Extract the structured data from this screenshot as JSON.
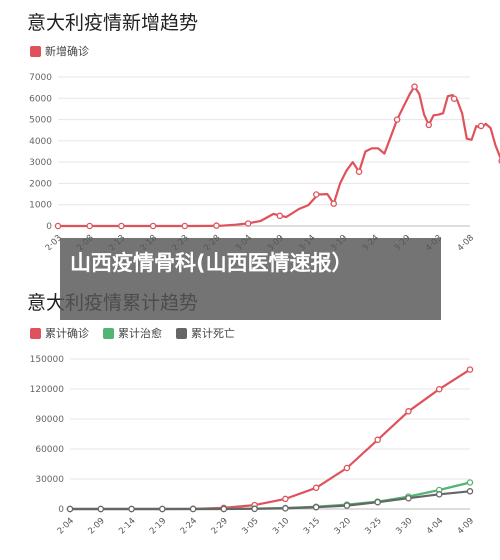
{
  "overlay": {
    "text": "山西疫情骨科(山西医情速报）"
  },
  "chart_data": [
    {
      "type": "line",
      "title": "意大利疫情新增趋势",
      "legend": [
        "新增确诊"
      ],
      "legend_placement": "top-left",
      "grid": true,
      "colors": [
        "#e0525b"
      ],
      "ylim": [
        0,
        7000
      ],
      "yticks": [
        0,
        1000,
        2000,
        3000,
        4000,
        5000,
        6000,
        7000
      ],
      "xticks": [
        "2·03",
        "2·08",
        "2·13",
        "2·18",
        "2·23",
        "2·28",
        "3·04",
        "3·09",
        "3·14",
        "3·19",
        "3·24",
        "3·29",
        "4·03",
        "4·08"
      ],
      "series": [
        {
          "name": "新增确诊",
          "points": [
            [
              0,
              0
            ],
            [
              0.6,
              0
            ],
            [
              1.2,
              0
            ],
            [
              1.8,
              0
            ],
            [
              2.4,
              0
            ],
            [
              3.0,
              0
            ],
            [
              3.6,
              0
            ],
            [
              4.2,
              0
            ],
            [
              4.8,
              3
            ],
            [
              5.2,
              20
            ],
            [
              5.6,
              60
            ],
            [
              6.0,
              120
            ],
            [
              6.4,
              240
            ],
            [
              6.8,
              570
            ],
            [
              7.2,
              420
            ],
            [
              7.6,
              800
            ],
            [
              7.9,
              980
            ],
            [
              8.2,
              1480
            ],
            [
              8.5,
              1500
            ],
            [
              8.7,
              1050
            ],
            [
              8.9,
              2000
            ],
            [
              9.1,
              2600
            ],
            [
              9.3,
              3000
            ],
            [
              9.5,
              2550
            ],
            [
              9.7,
              3500
            ],
            [
              9.9,
              3650
            ],
            [
              10.1,
              3650
            ],
            [
              10.3,
              3400
            ],
            [
              10.5,
              4200
            ],
            [
              10.7,
              5000
            ],
            [
              10.9,
              5600
            ],
            [
              11.1,
              6200
            ],
            [
              11.25,
              6550
            ],
            [
              11.4,
              6200
            ],
            [
              11.55,
              5250
            ],
            [
              11.7,
              4750
            ],
            [
              11.85,
              5200
            ],
            [
              12.0,
              5230
            ],
            [
              12.15,
              5300
            ],
            [
              12.3,
              6100
            ],
            [
              12.45,
              6150
            ],
            [
              12.6,
              5900
            ],
            [
              12.75,
              5300
            ],
            [
              12.9,
              4100
            ],
            [
              13.05,
              4050
            ],
            [
              13.2,
              4700
            ],
            [
              13.35,
              4600
            ],
            [
              13.5,
              4800
            ],
            [
              13.65,
              4600
            ],
            [
              13.8,
              3800
            ],
            [
              14,
              3050
            ]
          ],
          "markers": [
            [
              0,
              0
            ],
            [
              1,
              0
            ],
            [
              2,
              0
            ],
            [
              3,
              0
            ],
            [
              4,
              0
            ],
            [
              5,
              15
            ],
            [
              6,
              120
            ],
            [
              7,
              480
            ],
            [
              8.15,
              1480
            ],
            [
              8.7,
              1050
            ],
            [
              9.5,
              2550
            ],
            [
              10.7,
              5000
            ],
            [
              11.25,
              6550
            ],
            [
              11.7,
              4750
            ],
            [
              12.5,
              5980
            ],
            [
              13.35,
              4700
            ],
            [
              14,
              3050
            ]
          ]
        }
      ]
    },
    {
      "type": "line",
      "title": "意大利疫情累计趋势",
      "legend": [
        "累计确诊",
        "累计治愈",
        "累计死亡"
      ],
      "legend_placement": "top-left",
      "grid": true,
      "colors": [
        "#e0525b",
        "#52b573",
        "#666666"
      ],
      "ylim": [
        0,
        150000
      ],
      "yticks": [
        0,
        30000,
        60000,
        90000,
        120000,
        150000
      ],
      "xticks": [
        "2·04",
        "2·09",
        "2·14",
        "2·19",
        "2·24",
        "2·29",
        "3·05",
        "3·10",
        "3·15",
        "3·20",
        "3·25",
        "3·30",
        "4·04",
        "4·09"
      ],
      "series": [
        {
          "name": "累计确诊",
          "points": [
            [
              0,
              3
            ],
            [
              1,
              3
            ],
            [
              2,
              3
            ],
            [
              3,
              3
            ],
            [
              4,
              230
            ],
            [
              5,
              1100
            ],
            [
              6,
              3900
            ],
            [
              7,
              10100
            ],
            [
              8,
              21200
            ],
            [
              9,
              41000
            ],
            [
              10,
              69200
            ],
            [
              11,
              97700
            ],
            [
              12,
              119800
            ],
            [
              13,
              139400
            ]
          ],
          "markers": [
            [
              0,
              3
            ],
            [
              1,
              3
            ],
            [
              2,
              3
            ],
            [
              3,
              3
            ],
            [
              4,
              230
            ],
            [
              5,
              1100
            ],
            [
              6,
              3900
            ],
            [
              7,
              10100
            ],
            [
              8,
              21200
            ],
            [
              9,
              41000
            ],
            [
              10,
              69200
            ],
            [
              11,
              97700
            ],
            [
              12,
              119800
            ],
            [
              13,
              139400
            ]
          ]
        },
        {
          "name": "累计治愈",
          "points": [
            [
              0,
              0
            ],
            [
              1,
              0
            ],
            [
              2,
              0
            ],
            [
              3,
              0
            ],
            [
              4,
              1
            ],
            [
              5,
              50
            ],
            [
              6,
              400
            ],
            [
              7,
              1000
            ],
            [
              8,
              2300
            ],
            [
              9,
              4400
            ],
            [
              10,
              7400
            ],
            [
              11,
              12400
            ],
            [
              12,
              19000
            ],
            [
              13,
              26500
            ]
          ],
          "markers": [
            [
              0,
              0
            ],
            [
              1,
              0
            ],
            [
              2,
              0
            ],
            [
              3,
              0
            ],
            [
              4,
              1
            ],
            [
              5,
              50
            ],
            [
              6,
              400
            ],
            [
              7,
              1000
            ],
            [
              8,
              2300
            ],
            [
              9,
              4400
            ],
            [
              10,
              7400
            ],
            [
              11,
              12400
            ],
            [
              12,
              19000
            ],
            [
              13,
              26500
            ]
          ]
        },
        {
          "name": "累计死亡",
          "points": [
            [
              0,
              0
            ],
            [
              1,
              0
            ],
            [
              2,
              0
            ],
            [
              3,
              0
            ],
            [
              4,
              7
            ],
            [
              5,
              30
            ],
            [
              6,
              150
            ],
            [
              7,
              630
            ],
            [
              8,
              1800
            ],
            [
              9,
              3400
            ],
            [
              10,
              6800
            ],
            [
              11,
              10800
            ],
            [
              12,
              14700
            ],
            [
              13,
              17700
            ]
          ],
          "markers": [
            [
              0,
              0
            ],
            [
              1,
              0
            ],
            [
              2,
              0
            ],
            [
              3,
              0
            ],
            [
              4,
              7
            ],
            [
              5,
              30
            ],
            [
              6,
              150
            ],
            [
              7,
              630
            ],
            [
              8,
              1800
            ],
            [
              9,
              3400
            ],
            [
              10,
              6800
            ],
            [
              11,
              10800
            ],
            [
              12,
              14700
            ],
            [
              13,
              17700
            ]
          ]
        }
      ]
    }
  ]
}
